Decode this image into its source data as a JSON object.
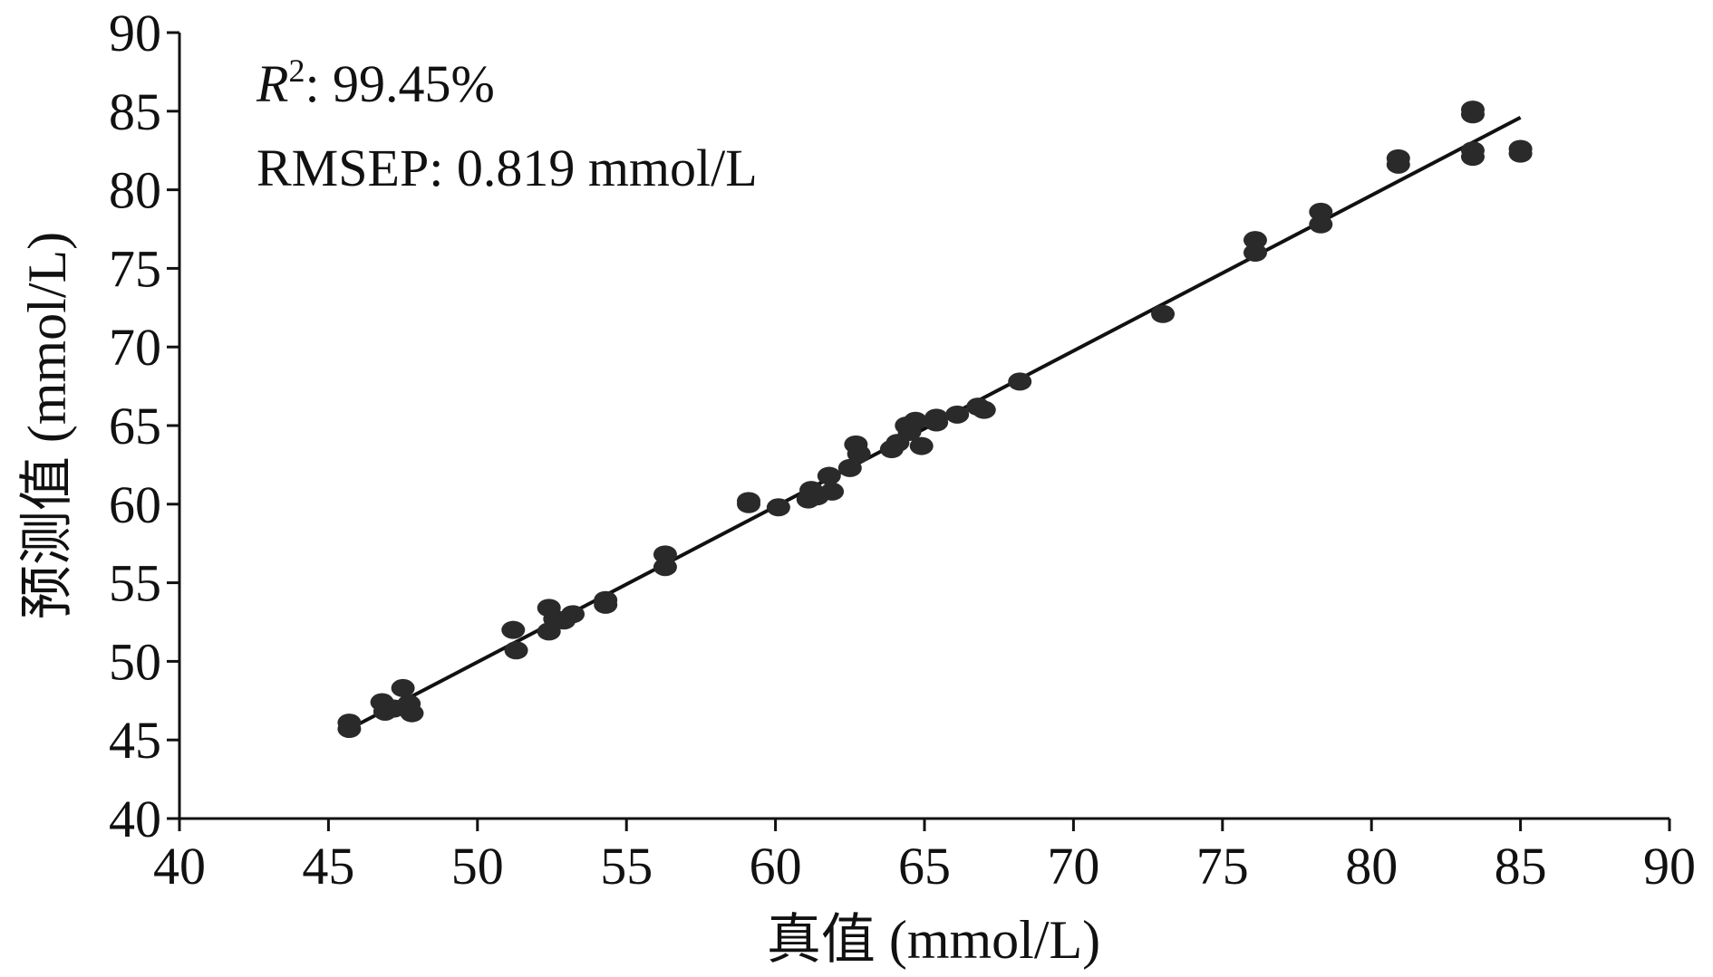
{
  "chart_data": {
    "type": "scatter",
    "title": "",
    "xlabel": "真值 (mmol/L)",
    "ylabel": "预测值 (mmol/L)",
    "xlim": [
      40,
      90
    ],
    "ylim": [
      40,
      90
    ],
    "xticks": [
      40,
      45,
      50,
      55,
      60,
      65,
      70,
      75,
      80,
      85,
      90
    ],
    "yticks": [
      40,
      45,
      50,
      55,
      60,
      65,
      70,
      75,
      80,
      85,
      90
    ],
    "grid": false,
    "annotations": {
      "r2_symbol": "R",
      "r2_sup": "2",
      "r2_value": ": 99.45%",
      "rmsep": "RMSEP: 0.819 mmol/L"
    },
    "fit_line": {
      "x": [
        45.6,
        85.0
      ],
      "y": [
        45.6,
        84.6
      ]
    },
    "series": [
      {
        "name": "samples",
        "color": "#2a2a2a",
        "points": [
          [
            45.7,
            46.1
          ],
          [
            45.7,
            45.7
          ],
          [
            46.8,
            47.4
          ],
          [
            46.9,
            46.8
          ],
          [
            47.2,
            47.0
          ],
          [
            47.5,
            48.3
          ],
          [
            47.7,
            47.3
          ],
          [
            47.8,
            46.7
          ],
          [
            51.2,
            52.0
          ],
          [
            51.3,
            50.7
          ],
          [
            52.4,
            53.4
          ],
          [
            52.4,
            51.9
          ],
          [
            52.6,
            52.7
          ],
          [
            52.9,
            52.6
          ],
          [
            53.2,
            53.0
          ],
          [
            54.3,
            53.6
          ],
          [
            54.3,
            53.9
          ],
          [
            56.3,
            56.8
          ],
          [
            56.3,
            56.0
          ],
          [
            59.1,
            60.0
          ],
          [
            59.1,
            60.2
          ],
          [
            60.1,
            59.8
          ],
          [
            61.1,
            60.3
          ],
          [
            61.2,
            60.9
          ],
          [
            61.4,
            60.5
          ],
          [
            61.8,
            61.8
          ],
          [
            61.9,
            60.8
          ],
          [
            62.5,
            62.3
          ],
          [
            62.7,
            63.8
          ],
          [
            62.8,
            63.2
          ],
          [
            63.9,
            63.5
          ],
          [
            64.1,
            63.9
          ],
          [
            64.4,
            65.0
          ],
          [
            64.5,
            64.6
          ],
          [
            64.7,
            65.3
          ],
          [
            64.9,
            63.7
          ],
          [
            65.4,
            65.2
          ],
          [
            65.4,
            65.5
          ],
          [
            66.1,
            65.7
          ],
          [
            66.8,
            66.2
          ],
          [
            67.0,
            66.0
          ],
          [
            68.2,
            67.8
          ],
          [
            73.0,
            72.1
          ],
          [
            76.1,
            76.8
          ],
          [
            76.1,
            76.0
          ],
          [
            78.3,
            78.6
          ],
          [
            78.3,
            77.8
          ],
          [
            80.9,
            82.0
          ],
          [
            80.9,
            81.6
          ],
          [
            83.4,
            85.1
          ],
          [
            83.4,
            84.8
          ],
          [
            83.4,
            82.5
          ],
          [
            83.4,
            82.1
          ],
          [
            85.0,
            82.6
          ],
          [
            85.0,
            82.3
          ]
        ]
      }
    ]
  }
}
